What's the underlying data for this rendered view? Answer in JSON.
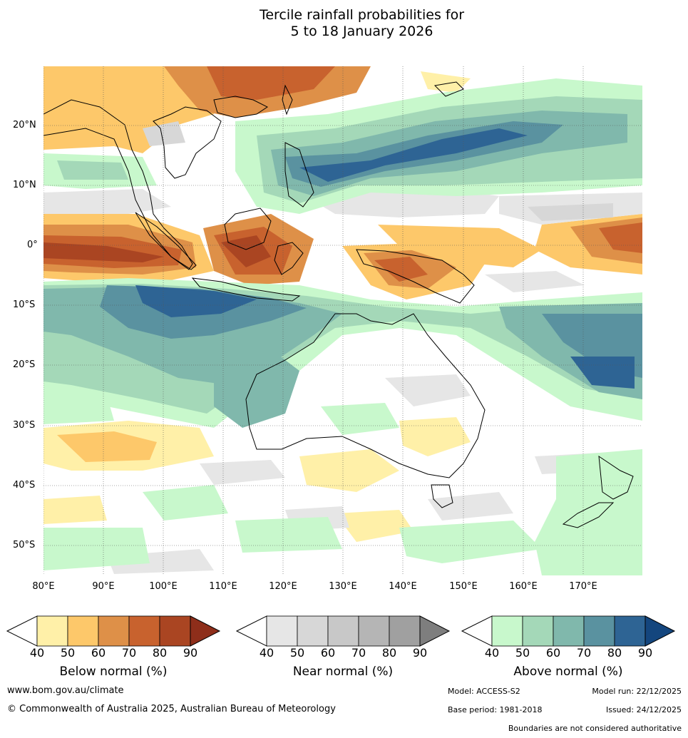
{
  "title": {
    "line1": "Tercile rainfall probabilities for",
    "line2": "5 to 18 January 2026"
  },
  "map": {
    "lat_labels": [
      "20°N",
      "10°N",
      "0°",
      "10°S",
      "20°S",
      "30°S",
      "40°S",
      "50°S"
    ],
    "lon_labels": [
      "80°E",
      "90°E",
      "100°E",
      "110°E",
      "120°E",
      "130°E",
      "140°E",
      "150°E",
      "160°E",
      "170°E"
    ]
  },
  "colorbars": [
    {
      "title": "Below normal (%)",
      "ticks": [
        "40",
        "50",
        "60",
        "70",
        "80",
        "90"
      ],
      "colors": [
        "#fff0a8",
        "#fdc86a",
        "#de9048",
        "#c8622e",
        "#aa4522",
        "#8e2e1a"
      ]
    },
    {
      "title": "Near normal (%)",
      "ticks": [
        "40",
        "50",
        "60",
        "70",
        "80",
        "90"
      ],
      "colors": [
        "#e6e6e6",
        "#d7d7d7",
        "#c8c8c8",
        "#b5b5b5",
        "#a0a0a0",
        "#7e7e7e"
      ]
    },
    {
      "title": "Above normal (%)",
      "ticks": [
        "40",
        "50",
        "60",
        "70",
        "80",
        "90"
      ],
      "colors": [
        "#c8f8cc",
        "#a4d8b8",
        "#80b8ac",
        "#5a92a0",
        "#2e6494",
        "#14467e"
      ]
    }
  ],
  "footer": {
    "website": "www.bom.gov.au/climate",
    "copyright": "© Commonwealth of Australia 2025, Australian Bureau of Meteorology",
    "model": "Model: ACCESS-S2",
    "model_run": "Model run: 22/12/2025",
    "base_period": "Base period: 1981-2018",
    "issued": "Issued: 24/12/2025",
    "disclaimer": "Boundaries are not considered authoritative"
  }
}
